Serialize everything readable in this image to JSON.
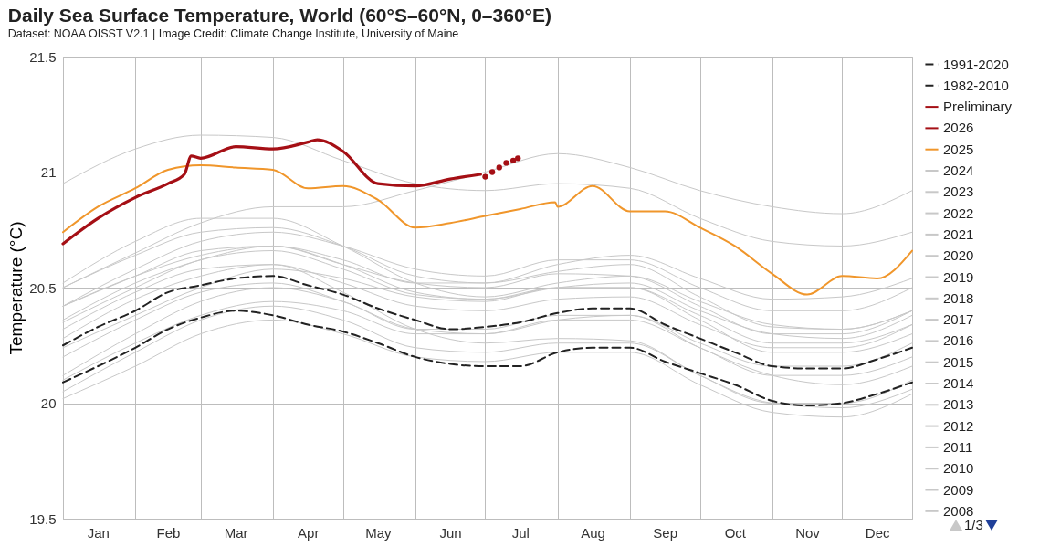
{
  "chart_data": {
    "type": "line",
    "title": "Daily Sea Surface Temperature, World (60°S–60°N, 0–360°E)",
    "subtitle": "Dataset: NOAA OISST V2.1 | Image Credit: Climate Change Institute, University of Maine",
    "ylabel": "Temperature (°C)",
    "annotations": [
      "1/3"
    ],
    "xlim": [
      "--01-01",
      "--12-31"
    ],
    "xticks": [
      {
        "value": "--01-01",
        "label": null
      },
      {
        "value": "--01-16",
        "label": "Jan"
      },
      {
        "value": "--02-01",
        "label": null
      },
      {
        "value": "--02-15",
        "label": "Feb"
      },
      {
        "value": "--03-01",
        "label": null
      },
      {
        "value": "--03-16",
        "label": "Mar"
      },
      {
        "value": "--04-01",
        "label": null
      },
      {
        "value": "--04-16",
        "label": "Apr"
      },
      {
        "value": "--05-01",
        "label": null
      },
      {
        "value": "--05-16",
        "label": "May"
      },
      {
        "value": "--06-01",
        "label": null
      },
      {
        "value": "--06-16",
        "label": "Jun"
      },
      {
        "value": "--07-01",
        "label": null
      },
      {
        "value": "--07-16",
        "label": "Jul"
      },
      {
        "value": "--08-01",
        "label": null
      },
      {
        "value": "--08-16",
        "label": "Aug"
      },
      {
        "value": "--09-01",
        "label": null
      },
      {
        "value": "--09-16",
        "label": "Sep"
      },
      {
        "value": "--10-01",
        "label": null
      },
      {
        "value": "--10-16",
        "label": "Oct"
      },
      {
        "value": "--11-01",
        "label": null
      },
      {
        "value": "--11-16",
        "label": "Nov"
      },
      {
        "value": "--12-01",
        "label": null
      },
      {
        "value": "--12-16",
        "label": "Dec"
      },
      {
        "value": "--12-31",
        "label": null
      }
    ],
    "ylim": [
      19.5,
      21.5
    ],
    "yticks": [
      19.5,
      20,
      20.5,
      21,
      21.5
    ],
    "grid": true,
    "legend": "right",
    "x": [
      "--01-01",
      "--02-01",
      "--03-01",
      "--04-01",
      "--05-01",
      "--06-01",
      "--07-01",
      "--08-01",
      "--09-01",
      "--10-01",
      "--11-01",
      "--12-01",
      "--12-31"
    ],
    "series": [
      {
        "name": "1991-2020",
        "color": "#222222",
        "line_style": "dashed",
        "x": [
          "--01-01",
          "--01-16",
          "--02-01",
          "--02-15",
          "--03-01",
          "--03-16",
          "--04-01",
          "--04-16",
          "--05-01",
          "--05-16",
          "--06-01",
          "--06-16",
          "--07-01",
          "--07-16",
          "--08-01",
          "--08-16",
          "--09-01",
          "--09-16",
          "--10-01",
          "--10-16",
          "--11-01",
          "--11-16",
          "--12-01",
          "--12-16",
          "--12-31"
        ],
        "values": [
          20.25,
          20.33,
          20.4,
          20.48,
          20.51,
          20.54,
          20.55,
          20.51,
          20.47,
          20.41,
          20.36,
          20.32,
          20.33,
          20.35,
          20.39,
          20.41,
          20.41,
          20.34,
          20.28,
          20.22,
          20.16,
          20.15,
          20.15,
          20.19,
          20.24
        ]
      },
      {
        "name": "1982-2010",
        "color": "#222222",
        "line_style": "dashed",
        "x": [
          "--01-01",
          "--01-16",
          "--02-01",
          "--02-15",
          "--03-01",
          "--03-16",
          "--04-01",
          "--04-16",
          "--05-01",
          "--05-16",
          "--06-01",
          "--06-16",
          "--07-01",
          "--07-16",
          "--08-01",
          "--08-16",
          "--09-01",
          "--09-16",
          "--10-01",
          "--10-16",
          "--11-01",
          "--11-16",
          "--12-01",
          "--12-16",
          "--12-31"
        ],
        "values": [
          20.09,
          20.16,
          20.24,
          20.32,
          20.37,
          20.4,
          20.38,
          20.34,
          20.31,
          20.26,
          20.2,
          20.17,
          20.16,
          20.16,
          20.22,
          20.24,
          20.24,
          20.18,
          20.13,
          20.08,
          20.01,
          19.99,
          20.0,
          20.04,
          20.09
        ]
      },
      {
        "name": "Preliminary",
        "type": "scatter",
        "marker": "circle",
        "color": "#a50f15",
        "x": [
          "--07-01",
          "--07-04",
          "--07-07",
          "--07-10",
          "--07-13",
          "--07-15"
        ],
        "values": [
          20.98,
          21.0,
          21.02,
          21.04,
          21.05,
          21.06
        ]
      },
      {
        "name": "2026",
        "color": "#a50f15",
        "x": [
          "--01-01",
          "--01-16",
          "--02-01",
          "--02-15",
          "--02-22",
          "--02-25",
          "--03-01",
          "--03-16",
          "--04-01",
          "--04-16",
          "--04-20",
          "--05-01",
          "--05-16",
          "--06-01",
          "--06-16",
          "--06-29"
        ],
        "values": [
          20.69,
          20.8,
          20.89,
          20.95,
          20.99,
          21.07,
          21.06,
          21.11,
          21.1,
          21.13,
          21.14,
          21.09,
          20.95,
          20.94,
          20.97,
          20.99
        ]
      },
      {
        "name": "2025",
        "color": "#f0962b",
        "x": [
          "--01-01",
          "--01-16",
          "--02-01",
          "--02-15",
          "--03-01",
          "--03-16",
          "--04-01",
          "--04-16",
          "--05-01",
          "--05-16",
          "--06-01",
          "--06-16",
          "--07-01",
          "--07-16",
          "--07-31",
          "--08-01",
          "--08-16",
          "--09-01",
          "--09-16",
          "--10-01",
          "--10-16",
          "--11-01",
          "--11-16",
          "--12-01",
          "--12-16",
          "--12-31"
        ],
        "values": [
          20.74,
          20.85,
          20.93,
          21.01,
          21.03,
          21.02,
          21.01,
          20.93,
          20.94,
          20.88,
          20.76,
          20.78,
          20.81,
          20.84,
          20.87,
          20.85,
          20.94,
          20.83,
          20.83,
          20.76,
          20.68,
          20.56,
          20.47,
          20.55,
          20.54,
          20.66
        ]
      },
      {
        "name": "2024",
        "color": "#c8c8c8",
        "values": [
          20.95,
          21.1,
          21.16,
          21.15,
          21.05,
          20.95,
          20.92,
          20.95,
          20.93,
          20.8,
          20.7,
          20.68,
          20.74
        ]
      },
      {
        "name": "2023",
        "color": "#c8c8c8",
        "values": [
          20.5,
          20.65,
          20.78,
          20.85,
          20.85,
          20.92,
          21.0,
          21.08,
          21.02,
          20.92,
          20.85,
          20.82,
          20.92
        ]
      },
      {
        "name": "2022",
        "color": "#c8c8c8",
        "values": [
          20.42,
          20.55,
          20.66,
          20.68,
          20.6,
          20.52,
          20.5,
          20.56,
          20.55,
          20.42,
          20.3,
          20.3,
          20.4
        ]
      },
      {
        "name": "2021",
        "color": "#c8c8c8",
        "values": [
          20.35,
          20.5,
          20.62,
          20.66,
          20.58,
          20.47,
          20.45,
          20.5,
          20.52,
          20.4,
          20.3,
          20.28,
          20.38
        ]
      },
      {
        "name": "2020",
        "color": "#c8c8c8",
        "values": [
          20.5,
          20.64,
          20.74,
          20.76,
          20.68,
          20.55,
          20.52,
          20.57,
          20.6,
          20.46,
          20.33,
          20.32,
          20.4
        ]
      },
      {
        "name": "2019",
        "color": "#c8c8c8",
        "values": [
          20.42,
          20.58,
          20.7,
          20.74,
          20.68,
          20.58,
          20.55,
          20.62,
          20.62,
          20.5,
          20.4,
          20.4,
          20.5
        ]
      },
      {
        "name": "2018",
        "color": "#c8c8c8",
        "values": [
          20.28,
          20.45,
          20.55,
          20.6,
          20.52,
          20.42,
          20.4,
          20.45,
          20.46,
          20.34,
          20.24,
          20.24,
          20.34
        ]
      },
      {
        "name": "2017",
        "color": "#c8c8c8",
        "values": [
          20.42,
          20.55,
          20.64,
          20.68,
          20.6,
          20.48,
          20.45,
          20.5,
          20.5,
          20.36,
          20.22,
          20.22,
          20.3
        ]
      },
      {
        "name": "2016",
        "color": "#c8c8c8",
        "values": [
          20.52,
          20.7,
          20.8,
          20.8,
          20.68,
          20.52,
          20.46,
          20.52,
          20.55,
          20.44,
          20.34,
          20.32,
          20.4
        ]
      },
      {
        "name": "2015",
        "color": "#c8c8c8",
        "values": [
          20.36,
          20.52,
          20.62,
          20.68,
          20.62,
          20.52,
          20.52,
          20.6,
          20.64,
          20.54,
          20.45,
          20.46,
          20.54
        ]
      },
      {
        "name": "2014",
        "color": "#c8c8c8",
        "values": [
          20.24,
          20.38,
          20.5,
          20.58,
          20.54,
          20.46,
          20.44,
          20.5,
          20.5,
          20.38,
          20.26,
          20.26,
          20.34
        ]
      },
      {
        "name": "2013",
        "color": "#c8c8c8",
        "values": [
          20.2,
          20.36,
          20.48,
          20.52,
          20.44,
          20.32,
          20.3,
          20.36,
          20.36,
          20.24,
          20.12,
          20.12,
          20.2
        ]
      },
      {
        "name": "2012",
        "color": "#c8c8c8",
        "values": [
          20.12,
          20.3,
          20.44,
          20.5,
          20.44,
          20.32,
          20.32,
          20.38,
          20.38,
          20.24,
          20.12,
          20.08,
          20.16
        ]
      },
      {
        "name": "2011",
        "color": "#c8c8c8",
        "values": [
          20.05,
          20.22,
          20.36,
          20.42,
          20.36,
          20.24,
          20.22,
          20.26,
          20.26,
          20.12,
          20.0,
          20.0,
          20.1
        ]
      },
      {
        "name": "2010",
        "color": "#c8c8c8",
        "values": [
          20.32,
          20.48,
          20.58,
          20.6,
          20.48,
          20.32,
          20.26,
          20.28,
          20.27,
          20.12,
          20.0,
          19.98,
          20.06
        ]
      },
      {
        "name": "2009",
        "color": "#c8c8c8",
        "values": [
          20.1,
          20.26,
          20.38,
          20.44,
          20.4,
          20.3,
          20.3,
          20.36,
          20.38,
          20.26,
          20.16,
          20.16,
          20.26
        ]
      },
      {
        "name": "2008",
        "color": "#c8c8c8",
        "values": [
          20.02,
          20.16,
          20.3,
          20.36,
          20.3,
          20.2,
          20.18,
          20.22,
          20.22,
          20.08,
          19.96,
          19.94,
          20.04
        ]
      }
    ]
  }
}
